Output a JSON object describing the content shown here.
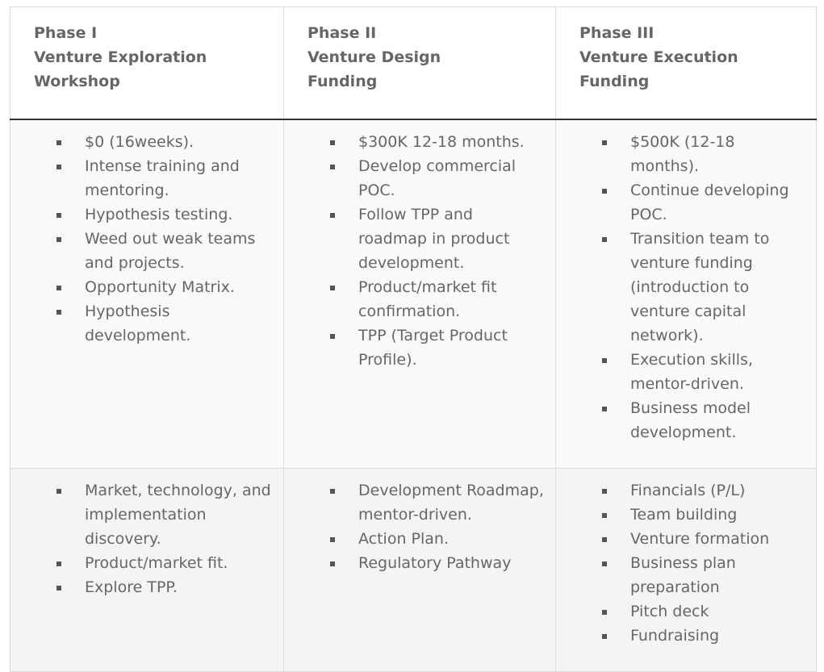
{
  "table": {
    "headers": [
      {
        "phase": "Phase I",
        "title_line1": "Venture Exploration",
        "title_line2": "Workshop"
      },
      {
        "phase": "Phase II",
        "title_line1": "Venture Design",
        "title_line2": "Funding"
      },
      {
        "phase": "Phase III",
        "title_line1": "Venture Execution",
        "title_line2": "Funding"
      }
    ],
    "rows": [
      [
        [
          "$0 (16weeks).",
          "Intense training and mentoring.",
          "Hypothesis testing.",
          "Weed out weak teams and projects.",
          "Opportunity Matrix.",
          "Hypothesis development."
        ],
        [
          "$300K 12-18 months.",
          "Develop commercial POC.",
          "Follow TPP and roadmap in product development.",
          "Product/market fit confirmation.",
          "TPP (Target Product Profile)."
        ],
        [
          "$500K (12-18 months).",
          "Continue developing POC.",
          "Transition team to venture funding (introduction to venture capital network).",
          "Execution skills, mentor-driven.",
          "Business model development."
        ]
      ],
      [
        [
          "Market, technology, and implementation discovery.",
          "Product/market fit.",
          "Explore TPP."
        ],
        [
          "Development Roadmap, mentor-driven.",
          "Action Plan.",
          "Regulatory Pathway"
        ],
        [
          "Financials (P/L)",
          "Team building",
          "Venture formation",
          "Business plan preparation",
          "Pitch deck",
          "Fundraising"
        ]
      ]
    ]
  },
  "colors": {
    "text": "#666666",
    "border": "#dddddd",
    "header_rule": "#333333",
    "row1_bg": "#f9f9f9",
    "row2_bg": "#f4f4f4",
    "bullet": "#555555"
  }
}
